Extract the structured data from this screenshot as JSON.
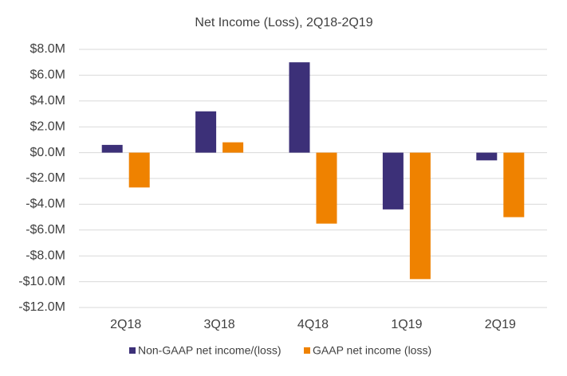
{
  "chart_data": {
    "type": "bar",
    "title": "Net Income (Loss), 2Q18-2Q19",
    "categories": [
      "2Q18",
      "3Q18",
      "4Q18",
      "1Q19",
      "2Q19"
    ],
    "series": [
      {
        "name": "Non-GAAP net income/(loss)",
        "color": "#3c3078",
        "values": [
          0.6,
          3.2,
          7.0,
          -4.4,
          -0.6
        ]
      },
      {
        "name": "GAAP net income (loss)",
        "color": "#ef8200",
        "values": [
          -2.7,
          0.8,
          -5.5,
          -9.8,
          -5.0
        ]
      }
    ],
    "ylim": [
      -12,
      8
    ],
    "yticks": [
      {
        "value": -12,
        "label": "-$12.0M"
      },
      {
        "value": -10,
        "label": "-$10.0M"
      },
      {
        "value": -8,
        "label": "-$8.0M"
      },
      {
        "value": -6,
        "label": "-$6.0M"
      },
      {
        "value": -4,
        "label": "-$4.0M"
      },
      {
        "value": -2,
        "label": "-$2.0M"
      },
      {
        "value": 0,
        "label": "$0.0M"
      },
      {
        "value": 2,
        "label": "$2.0M"
      },
      {
        "value": 4,
        "label": "$4.0M"
      },
      {
        "value": 6,
        "label": "$6.0M"
      },
      {
        "value": 8,
        "label": "$8.0M"
      }
    ],
    "grid": true,
    "legend": "bottom"
  }
}
